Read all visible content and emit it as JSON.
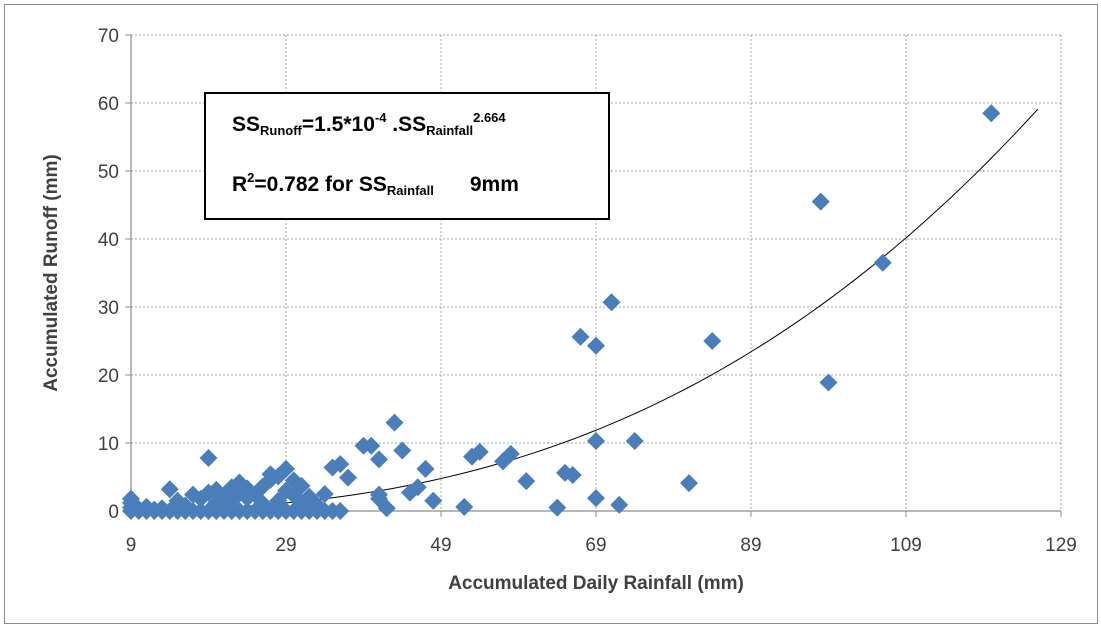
{
  "chart_data": {
    "type": "scatter",
    "xlabel": "Accumulated Daily Rainfall (mm)",
    "ylabel": "Accumulated Runoff (mm)",
    "xlim": [
      9,
      129
    ],
    "ylim": [
      0,
      70
    ],
    "x_ticks": [
      "9",
      "29",
      "49",
      "69",
      "89",
      "109",
      "129"
    ],
    "y_ticks": [
      "0",
      "10",
      "20",
      "30",
      "40",
      "50",
      "60",
      "70"
    ],
    "grid": true,
    "legend": "none",
    "marker": "diamond",
    "marker_color": "#4a7ebb",
    "trendline": {
      "type": "power",
      "coefficient": 0.00015,
      "exponent": 2.664,
      "x_range": [
        13,
        126
      ],
      "color": "#000000"
    },
    "points": [
      [
        9,
        0
      ],
      [
        9,
        0.5
      ],
      [
        9,
        1.2
      ],
      [
        9,
        1.8
      ],
      [
        10,
        0
      ],
      [
        10,
        0.3
      ],
      [
        11,
        0
      ],
      [
        11,
        0.6
      ],
      [
        12,
        0
      ],
      [
        12,
        0.2
      ],
      [
        13,
        0
      ],
      [
        13,
        0.4
      ],
      [
        14,
        0
      ],
      [
        14,
        3.2
      ],
      [
        15,
        0
      ],
      [
        15,
        1.5
      ],
      [
        16,
        0
      ],
      [
        16,
        0.8
      ],
      [
        17,
        0
      ],
      [
        17,
        2.4
      ],
      [
        18,
        0
      ],
      [
        18,
        1.8
      ],
      [
        19,
        0
      ],
      [
        19,
        2.7
      ],
      [
        19,
        7.8
      ],
      [
        20,
        0
      ],
      [
        20,
        1.2
      ],
      [
        20,
        3.1
      ],
      [
        21,
        0
      ],
      [
        21,
        0.9
      ],
      [
        21,
        2.2
      ],
      [
        22,
        0
      ],
      [
        22,
        3.5
      ],
      [
        22,
        1.5
      ],
      [
        23,
        0
      ],
      [
        23,
        2.6
      ],
      [
        23,
        4.2
      ],
      [
        24,
        0
      ],
      [
        24,
        1.9
      ],
      [
        24,
        3.3
      ],
      [
        25,
        0
      ],
      [
        25,
        2.4
      ],
      [
        26,
        0
      ],
      [
        26,
        1.1
      ],
      [
        26,
        3.6
      ],
      [
        27,
        0
      ],
      [
        27,
        5.4
      ],
      [
        27,
        4.6
      ],
      [
        28,
        0
      ],
      [
        28,
        1.5
      ],
      [
        28,
        5.1
      ],
      [
        29,
        0
      ],
      [
        29,
        3.0
      ],
      [
        29,
        6.2
      ],
      [
        30,
        0
      ],
      [
        30,
        2.3
      ],
      [
        30,
        4.5
      ],
      [
        31,
        0
      ],
      [
        31,
        0.8
      ],
      [
        31,
        3.7
      ],
      [
        32,
        0
      ],
      [
        32,
        2.1
      ],
      [
        33,
        0
      ],
      [
        33,
        0.9
      ],
      [
        34,
        0
      ],
      [
        34,
        2.5
      ],
      [
        35,
        0
      ],
      [
        35,
        6.4
      ],
      [
        36,
        0
      ],
      [
        36,
        6.9
      ],
      [
        37,
        4.9
      ],
      [
        39,
        9.6
      ],
      [
        40,
        9.6
      ],
      [
        41,
        7.6
      ],
      [
        41,
        2.4
      ],
      [
        41,
        1.8
      ],
      [
        42,
        0.4
      ],
      [
        43,
        13.0
      ],
      [
        44,
        8.9
      ],
      [
        45,
        2.7
      ],
      [
        46,
        3.5
      ],
      [
        47,
        6.2
      ],
      [
        48,
        1.5
      ],
      [
        52,
        0.6
      ],
      [
        53,
        8.0
      ],
      [
        54,
        8.7
      ],
      [
        57,
        7.3
      ],
      [
        58,
        8.4
      ],
      [
        60,
        4.4
      ],
      [
        64,
        0.5
      ],
      [
        65,
        5.6
      ],
      [
        66,
        5.3
      ],
      [
        67,
        25.6
      ],
      [
        69,
        24.3
      ],
      [
        69,
        10.3
      ],
      [
        69,
        1.9
      ],
      [
        71,
        30.7
      ],
      [
        72,
        0.9
      ],
      [
        74,
        10.3
      ],
      [
        81,
        4.1
      ],
      [
        84,
        25.0
      ],
      [
        98,
        45.5
      ],
      [
        99,
        18.9
      ],
      [
        106,
        36.5
      ],
      [
        120,
        58.5
      ]
    ]
  },
  "annotation": {
    "eq_ss1": "SS",
    "eq_runoff": "Runoff",
    "eq_mid": "=1.5*10",
    "eq_exp": "-4",
    "eq_dot": " .SS",
    "eq_rain": "Rainfall",
    "eq_pow": "2.664",
    "r_label": "R",
    "r_sup": "2",
    "r_value": "=0.782  for  SS",
    "r_rain": "Rainfall",
    "r_threshold": "9mm"
  }
}
